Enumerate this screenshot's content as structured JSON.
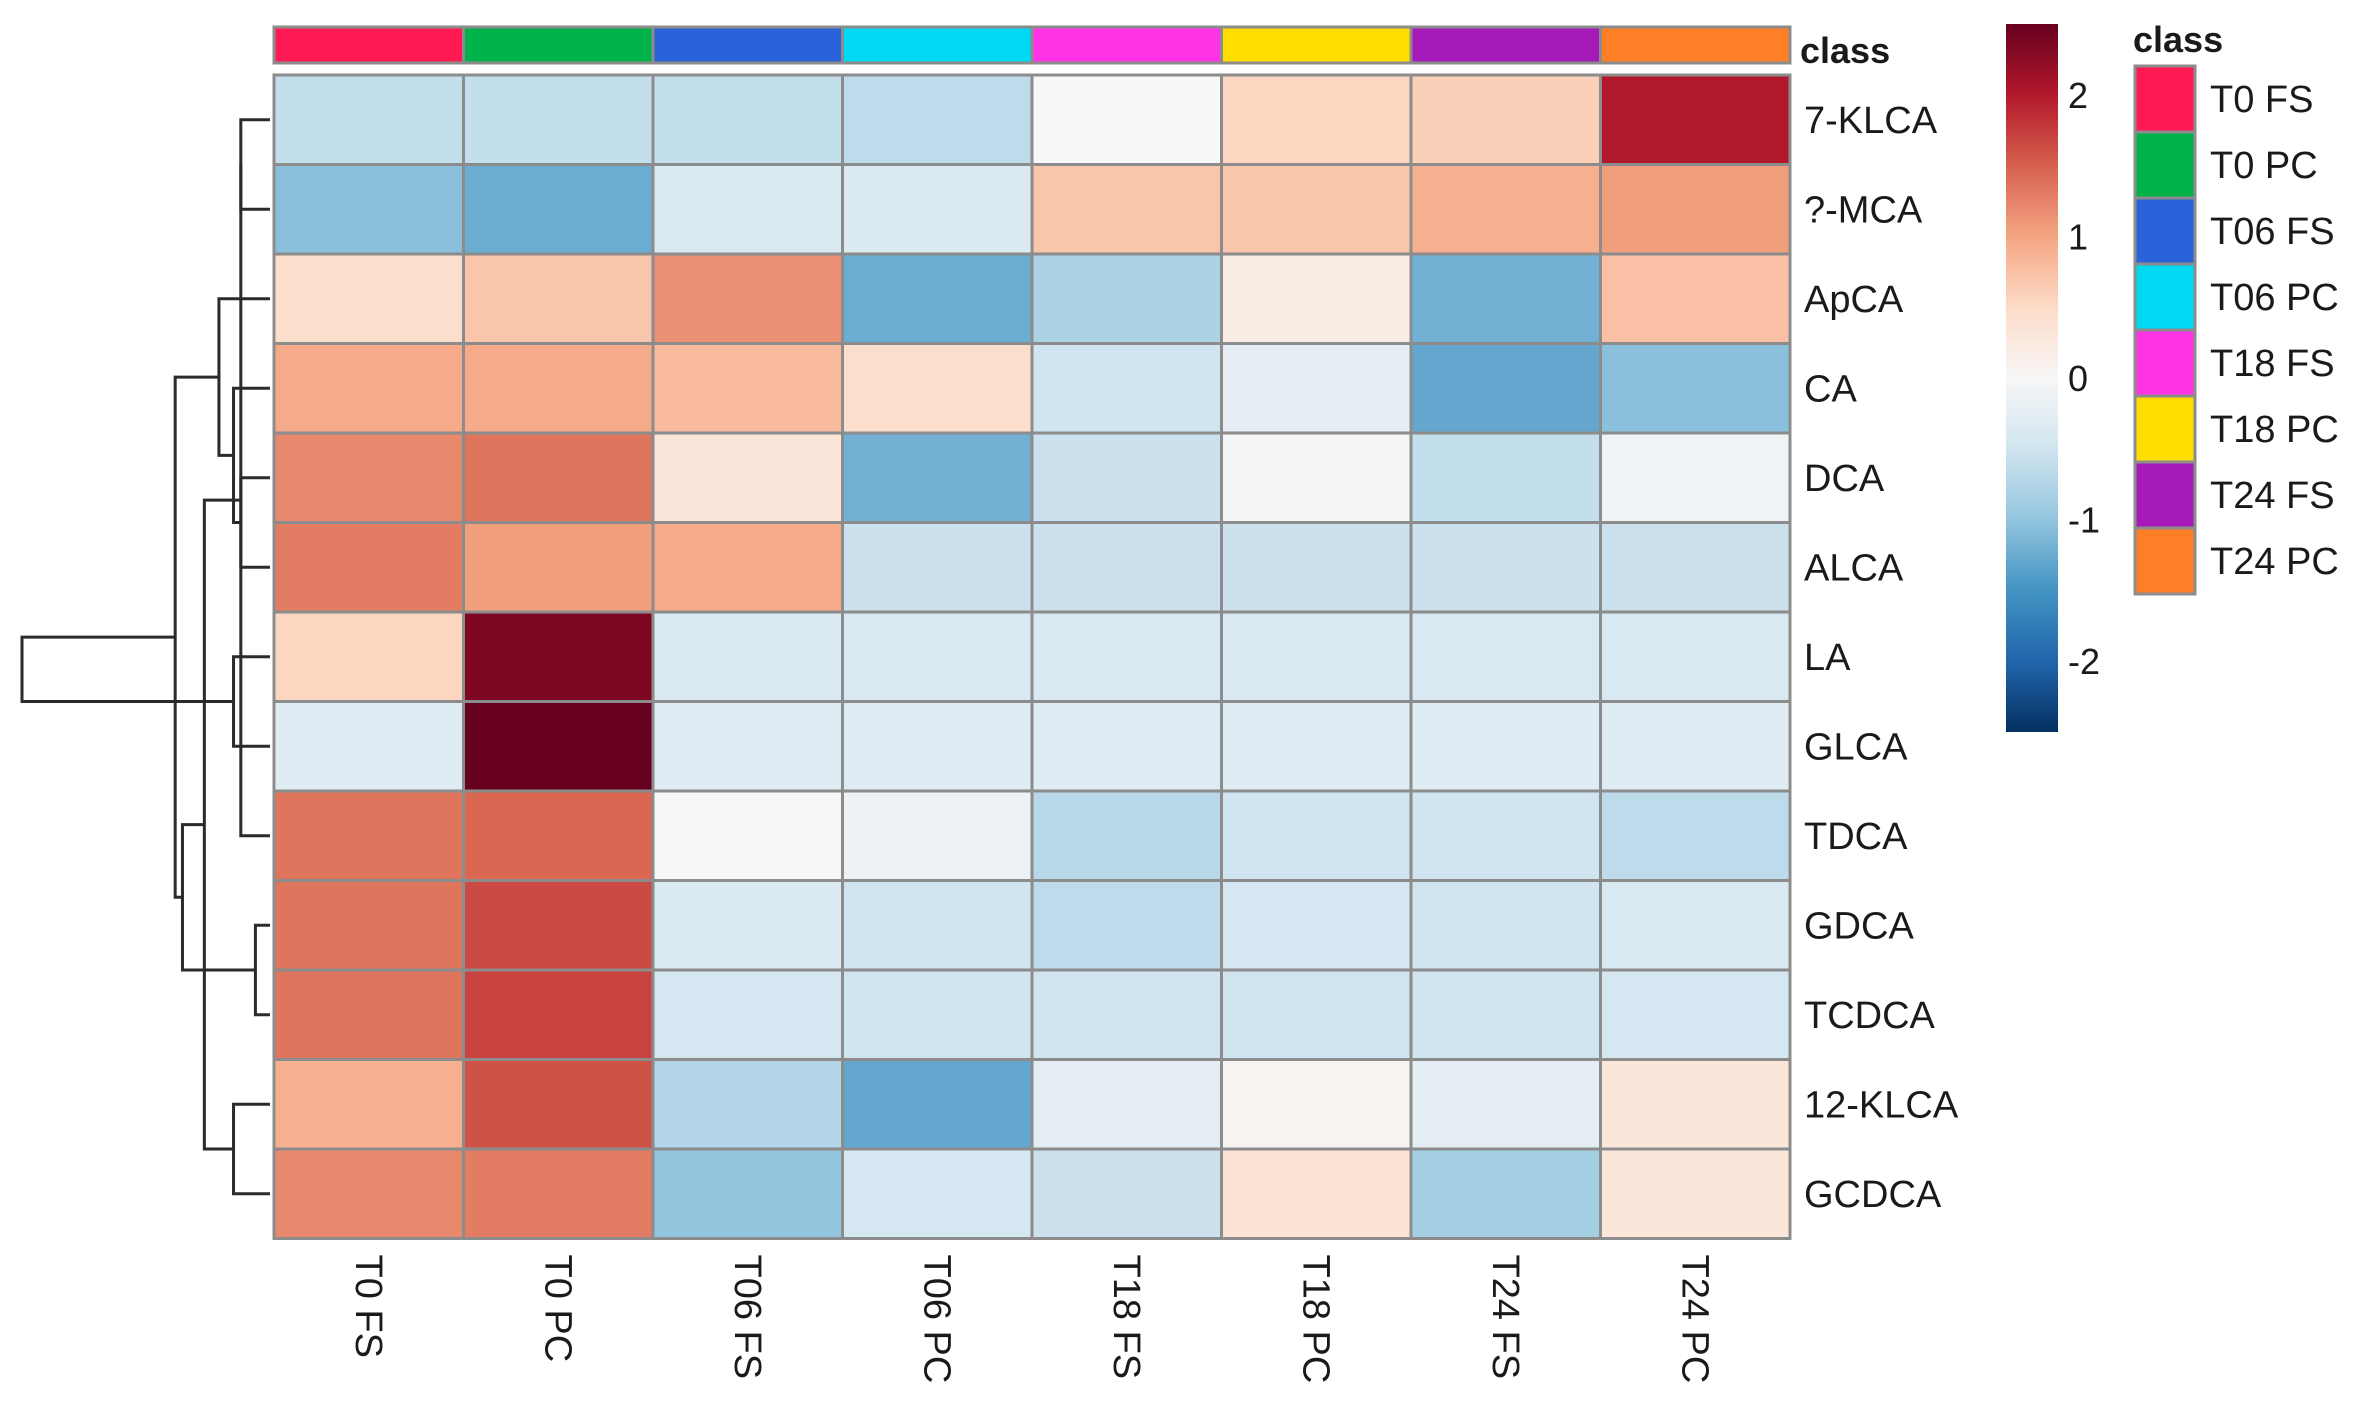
{
  "chart_data": {
    "type": "heatmap",
    "title": "",
    "xlabel": "",
    "ylabel": "",
    "columns": [
      "T0 FS",
      "T0 PC",
      "T06 FS",
      "T06 PC",
      "T18 FS",
      "T18 PC",
      "T24 FS",
      "T24 PC"
    ],
    "rows": [
      "7-KLCA",
      "?-MCA",
      "ApCA",
      "CA",
      "DCA",
      "ALCA",
      "LA",
      "GLCA",
      "TDCA",
      "GDCA",
      "TCDCA",
      "12-KLCA",
      "GCDCA"
    ],
    "values": [
      [
        -0.6,
        -0.6,
        -0.6,
        -0.65,
        0.0,
        0.55,
        0.6,
        2.0
      ],
      [
        -1.05,
        -1.25,
        -0.4,
        -0.35,
        0.7,
        0.7,
        0.9,
        1.05
      ],
      [
        0.45,
        0.7,
        1.15,
        -1.25,
        -0.8,
        0.2,
        -1.2,
        0.75
      ],
      [
        0.95,
        0.95,
        0.8,
        0.45,
        -0.5,
        -0.25,
        -1.3,
        -1.05
      ],
      [
        1.2,
        1.35,
        0.3,
        -1.2,
        -0.55,
        -0.05,
        -0.6,
        -0.1
      ],
      [
        1.3,
        1.05,
        0.95,
        -0.55,
        -0.55,
        -0.55,
        -0.55,
        -0.55
      ],
      [
        0.55,
        2.35,
        -0.4,
        -0.4,
        -0.4,
        -0.4,
        -0.4,
        -0.4
      ],
      [
        -0.3,
        2.5,
        -0.3,
        -0.3,
        -0.3,
        -0.3,
        -0.3,
        -0.3
      ],
      [
        1.35,
        1.45,
        0.0,
        -0.15,
        -0.7,
        -0.5,
        -0.5,
        -0.65
      ],
      [
        1.35,
        1.65,
        -0.35,
        -0.5,
        -0.65,
        -0.45,
        -0.5,
        -0.4
      ],
      [
        1.35,
        1.7,
        -0.45,
        -0.5,
        -0.5,
        -0.5,
        -0.5,
        -0.45
      ],
      [
        0.9,
        1.6,
        -0.75,
        -1.3,
        -0.25,
        0.05,
        -0.25,
        0.3
      ],
      [
        1.2,
        1.3,
        -1.0,
        -0.45,
        -0.55,
        0.35,
        -0.85,
        0.3
      ]
    ],
    "class_colors": [
      "#ff1a53",
      "#00b34a",
      "#2a63d9",
      "#00d9f2",
      "#ff33e6",
      "#ffdd00",
      "#a51ab8",
      "#ff7f26"
    ],
    "class_bar_label": "class",
    "colorbar": {
      "ticks": [
        "2",
        "1",
        "0",
        "-1",
        "-2"
      ],
      "tick_values": [
        2,
        1,
        0,
        -1,
        -2
      ],
      "range": [
        -2.5,
        2.5
      ],
      "colors": [
        "#053061",
        "#2166ac",
        "#4393c3",
        "#92c5de",
        "#d1e5f0",
        "#f7f7f7",
        "#fddbc7",
        "#f4a582",
        "#d6604d",
        "#b2182b",
        "#67001f"
      ]
    },
    "legend": {
      "title": "class",
      "placement": "right",
      "entries": [
        "T0 FS",
        "T0 PC",
        "T06 FS",
        "T06 PC",
        "T18 FS",
        "T18 PC",
        "T24 FS",
        "T24 PC"
      ]
    },
    "row_dendrogram": {
      "merges": [
        [
          0,
          1,
          0.2
        ],
        [
          4,
          5,
          0.2
        ],
        [
          6,
          7,
          0.25
        ],
        [
          9,
          10,
          0.1
        ],
        [
          8,
          13,
          0.2
        ],
        [
          11,
          12,
          0.25
        ],
        [
          3,
          14,
          0.25
        ],
        [
          2,
          19,
          0.35
        ],
        [
          17,
          18,
          0.45
        ],
        [
          16,
          21,
          0.6
        ],
        [
          20,
          22,
          0.65
        ],
        [
          15,
          23,
          1.7
        ]
      ]
    }
  }
}
